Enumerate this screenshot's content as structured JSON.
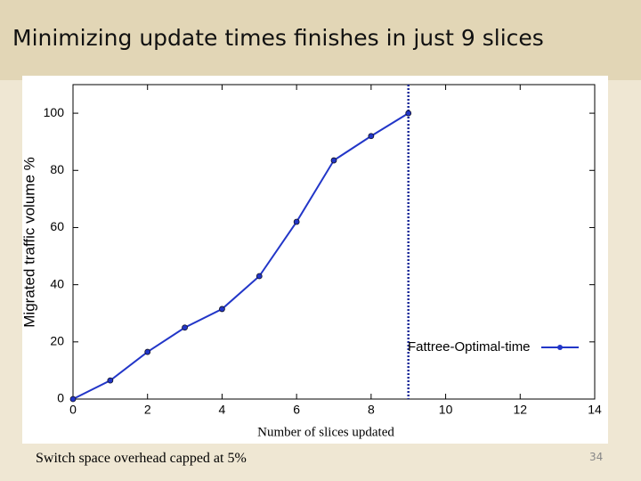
{
  "slide_title": "Minimizing update times finishes in just 9 slices",
  "chart_data": {
    "type": "line",
    "ylabel": "Migrated traffic volume %",
    "xlabel": "Number of slices updated",
    "x": [
      0,
      1,
      2,
      3,
      4,
      5,
      6,
      7,
      8,
      9
    ],
    "series": [
      {
        "name": "Fattree-Optimal-time",
        "color": "#2236c8",
        "values": [
          0,
          6.5,
          16.5,
          25,
          31.5,
          43,
          62,
          83.5,
          92,
          100
        ]
      }
    ],
    "vline": 9,
    "xlim": [
      0,
      14
    ],
    "xticks": [
      0,
      2,
      4,
      6,
      8,
      10,
      12,
      14
    ],
    "ylim": [
      0,
      110
    ],
    "yticks": [
      0,
      20,
      40,
      60,
      80,
      100
    ],
    "grid": false,
    "legend": "lower right"
  },
  "footer": "Switch space overhead capped at 5%",
  "page_number": "34"
}
